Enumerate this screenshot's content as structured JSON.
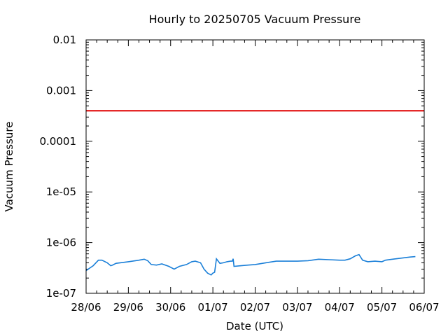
{
  "chart_data": {
    "type": "line",
    "title": "Hourly to 20250705 Vacuum Pressure",
    "xlabel": "Date (UTC)",
    "ylabel": "Vacuum Pressure",
    "yscale": "log",
    "ylim": [
      1e-07,
      0.01
    ],
    "yticks": [
      "1e-07",
      "1e-06",
      "1e-05",
      "0.0001",
      "0.001",
      "0.01"
    ],
    "xlim": [
      "2025-06-28",
      "2025-07-06"
    ],
    "xticks": [
      "28/06",
      "29/06",
      "30/06",
      "01/07",
      "02/07",
      "03/07",
      "04/07",
      "05/07",
      "06/07"
    ],
    "grid": false,
    "threshold": {
      "value": 0.0004,
      "color": "#e00000"
    },
    "series": [
      {
        "color": "#1a7fd8",
        "x": [
          "2025-06-28T00:00",
          "2025-06-28T04:00",
          "2025-06-28T07:00",
          "2025-06-28T09:00",
          "2025-06-28T12:00",
          "2025-06-28T14:00",
          "2025-06-28T15:00",
          "2025-06-28T17:00",
          "2025-06-29T00:00",
          "2025-06-29T06:00",
          "2025-06-29T09:00",
          "2025-06-29T11:00",
          "2025-06-29T13:00",
          "2025-06-29T16:00",
          "2025-06-29T19:00",
          "2025-06-29T23:00",
          "2025-06-30T02:00",
          "2025-06-30T05:00",
          "2025-06-30T09:00",
          "2025-06-30T12:00",
          "2025-06-30T14:00",
          "2025-06-30T17:00",
          "2025-06-30T19:00",
          "2025-06-30T21:00",
          "2025-06-30T23:00",
          "2025-07-01T00:00",
          "2025-07-01T01:00",
          "2025-07-01T02:00",
          "2025-07-01T04:00",
          "2025-07-01T06:00",
          "2025-07-01T08:00",
          "2025-07-01T10:00",
          "2025-07-01T11:00",
          "2025-07-01T11:30",
          "2025-07-01T12:00",
          "2025-07-01T16:00",
          "2025-07-01T20:00",
          "2025-07-02T00:00",
          "2025-07-02T06:00",
          "2025-07-02T12:00",
          "2025-07-02T18:00",
          "2025-07-03T00:00",
          "2025-07-03T06:00",
          "2025-07-03T12:00",
          "2025-07-03T18:00",
          "2025-07-04T00:00",
          "2025-07-04T03:00",
          "2025-07-04T06:00",
          "2025-07-04T09:00",
          "2025-07-04T11:00",
          "2025-07-04T13:00",
          "2025-07-04T16:00",
          "2025-07-04T20:00",
          "2025-07-05T00:00",
          "2025-07-05T02:00",
          "2025-07-05T06:00",
          "2025-07-05T12:00",
          "2025-07-05T16:00",
          "2025-07-05T19:00"
        ],
        "y": [
          2.8e-07,
          3.5e-07,
          4.5e-07,
          4.5e-07,
          4e-07,
          3.5e-07,
          3.6e-07,
          3.9e-07,
          4.2e-07,
          4.5e-07,
          4.7e-07,
          4.4e-07,
          3.7e-07,
          3.6e-07,
          3.8e-07,
          3.4e-07,
          3e-07,
          3.4e-07,
          3.7e-07,
          4.2e-07,
          4.3e-07,
          4e-07,
          3e-07,
          2.5e-07,
          2.3e-07,
          2.5e-07,
          2.6e-07,
          4.8e-07,
          3.9e-07,
          4e-07,
          4.2e-07,
          4.3e-07,
          4.3e-07,
          4.8e-07,
          3.4e-07,
          3.5e-07,
          3.6e-07,
          3.7e-07,
          4e-07,
          4.3e-07,
          4.3e-07,
          4.3e-07,
          4.4e-07,
          4.7e-07,
          4.6e-07,
          4.5e-07,
          4.5e-07,
          4.8e-07,
          5.5e-07,
          5.8e-07,
          4.5e-07,
          4.2e-07,
          4.3e-07,
          4.2e-07,
          4.5e-07,
          4.7e-07,
          5e-07,
          5.2e-07,
          5.3e-07
        ]
      }
    ]
  }
}
